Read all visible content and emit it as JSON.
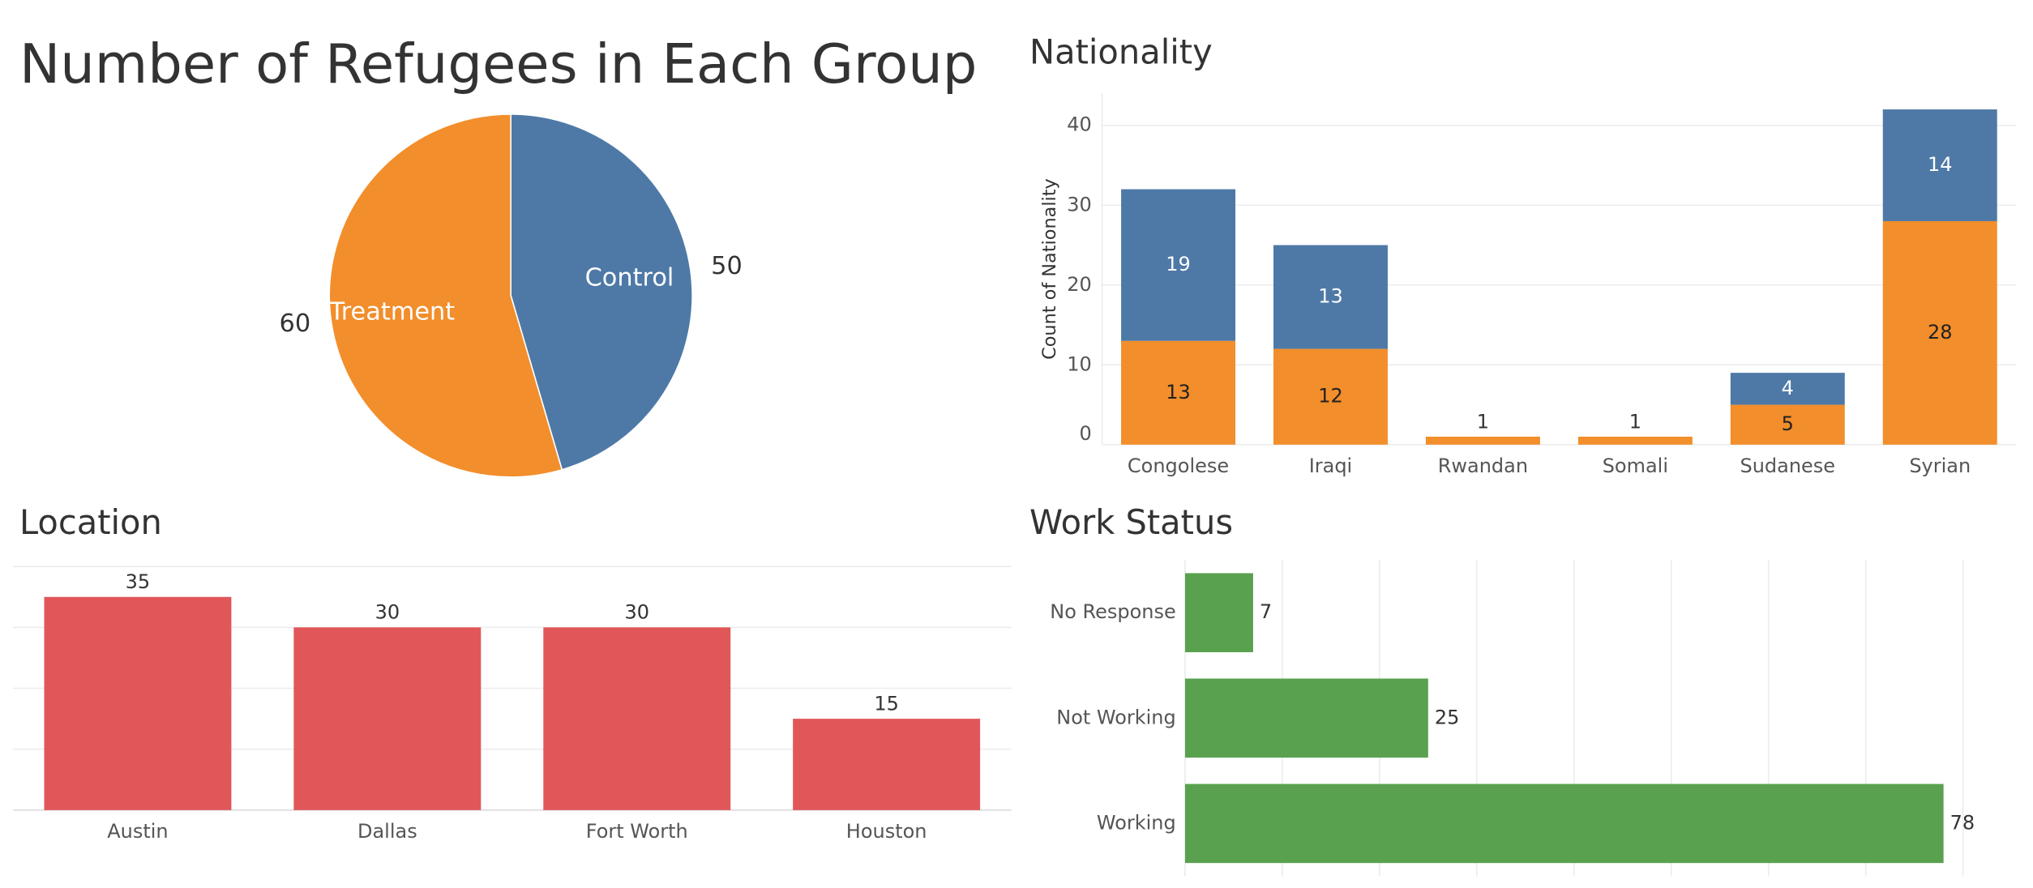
{
  "chart_data": [
    {
      "type": "pie",
      "title": "Number of Refugees in Each Group",
      "categories": [
        "Control",
        "Treatment"
      ],
      "values": [
        50,
        60
      ],
      "colors": [
        "#4e79a7",
        "#f28e2b"
      ]
    },
    {
      "type": "stacked_bar",
      "title": "Nationality",
      "y_label": "Count of Nationality",
      "categories": [
        "Congolese",
        "Iraqi",
        "Rwandan",
        "Somali",
        "Sudanese",
        "Syrian"
      ],
      "series": [
        {
          "color": "#f28e2b",
          "values": [
            13,
            12,
            1,
            1,
            5,
            28
          ]
        },
        {
          "color": "#4e79a7",
          "values": [
            19,
            13,
            null,
            null,
            4,
            14
          ]
        }
      ],
      "ylim": [
        0,
        44
      ],
      "yticks": [
        0,
        10,
        20,
        30,
        40
      ],
      "grid": true
    },
    {
      "type": "bar",
      "title": "Location",
      "categories": [
        "Austin",
        "Dallas",
        "Fort Worth",
        "Houston"
      ],
      "values": [
        35,
        30,
        30,
        15
      ],
      "color": "#e15759",
      "ylim": [
        0,
        40
      ],
      "yticks": [
        0,
        10,
        20,
        30,
        40
      ],
      "grid": true,
      "tick_labels": false
    },
    {
      "type": "hbar",
      "title": "Work Status",
      "categories": [
        "No Response",
        "Not Working",
        "Working"
      ],
      "values": [
        7,
        25,
        78
      ],
      "color": "#59a14f",
      "xlim": [
        0,
        85
      ],
      "xticks": [
        0,
        10,
        20,
        30,
        40,
        50,
        60,
        70,
        80
      ],
      "grid": true,
      "tick_labels": false
    }
  ]
}
